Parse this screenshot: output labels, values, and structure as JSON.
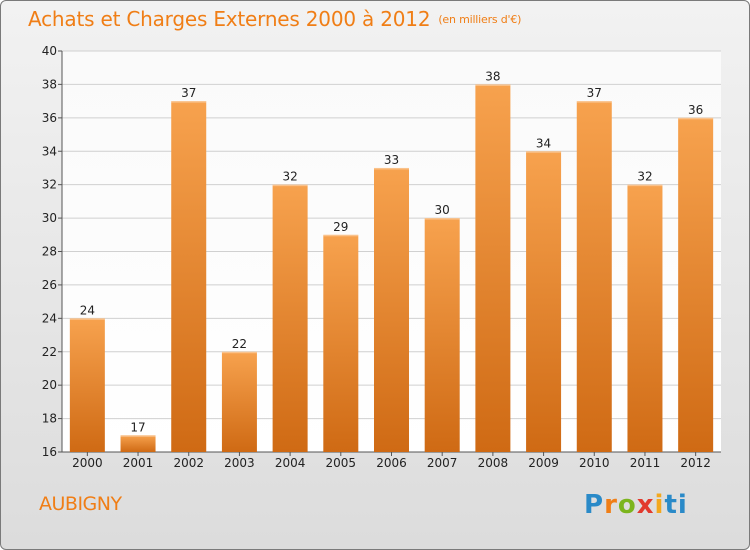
{
  "header": {
    "title": "Achats et Charges Externes 2000 à 2012",
    "unit": "(en milliers d'€)"
  },
  "footer": {
    "commune": "AUBIGNY",
    "logo": [
      "P",
      "r",
      "o",
      "x",
      "i",
      "ti"
    ]
  },
  "colors": {
    "accent": "#f07e16",
    "bar_top": "#f7a24e",
    "bar_bottom": "#cf6a14",
    "grid": "#d0d0d0",
    "axis": "#555555"
  },
  "chart_data": {
    "type": "bar",
    "title": "Achats et Charges Externes 2000 à 2012",
    "subtitle": "(en milliers d'€)",
    "categories": [
      "2000",
      "2001",
      "2002",
      "2003",
      "2004",
      "2005",
      "2006",
      "2007",
      "2008",
      "2009",
      "2010",
      "2011",
      "2012"
    ],
    "values": [
      24,
      17,
      37,
      22,
      32,
      29,
      33,
      30,
      38,
      34,
      37,
      32,
      36
    ],
    "ylim": [
      16,
      40
    ],
    "yticks": [
      16,
      18,
      20,
      22,
      24,
      26,
      28,
      30,
      32,
      34,
      36,
      38,
      40
    ],
    "grid": true,
    "legend": "none"
  }
}
